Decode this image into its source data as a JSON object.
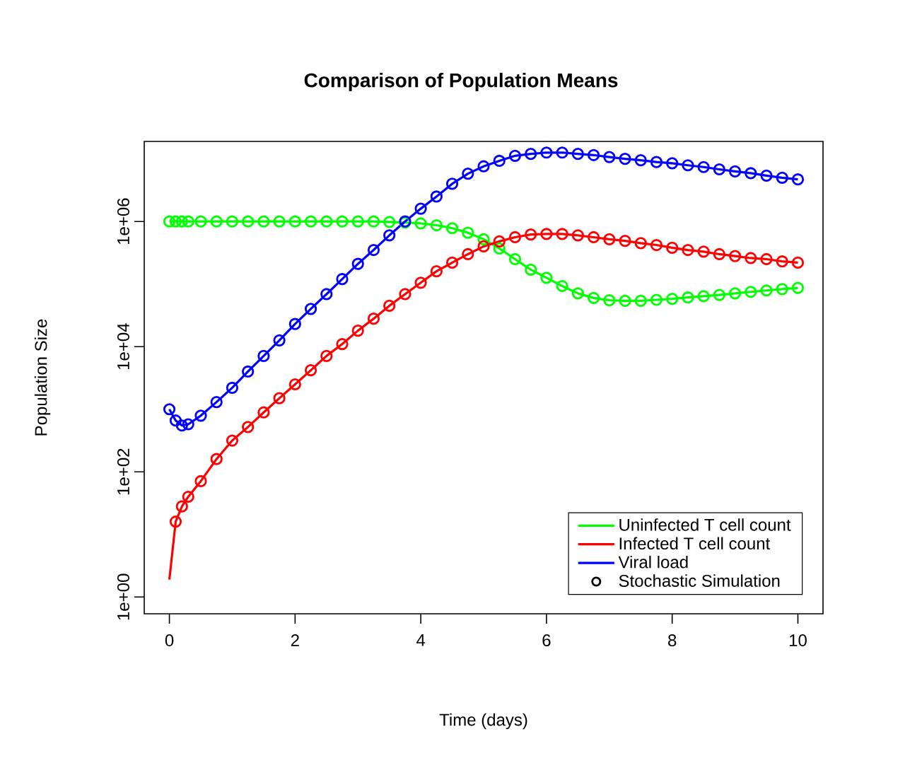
{
  "chart_data": {
    "type": "line",
    "title": "Comparison of Population Means",
    "xlabel": "Time (days)",
    "ylabel": "Population Size",
    "x": [
      0,
      0.1,
      0.2,
      0.3,
      0.5,
      0.75,
      1,
      1.25,
      1.5,
      1.75,
      2,
      2.25,
      2.5,
      2.75,
      3,
      3.25,
      3.5,
      3.75,
      4,
      4.25,
      4.5,
      4.75,
      5,
      5.25,
      5.5,
      5.75,
      6,
      6.25,
      6.5,
      6.75,
      7,
      7.25,
      7.5,
      7.75,
      8,
      8.25,
      8.5,
      8.75,
      9,
      9.25,
      9.5,
      9.75,
      10
    ],
    "series": [
      {
        "name": "Uninfected T cell count",
        "color": "#00ff00",
        "values": [
          1000000,
          1000000,
          1000000,
          1000000,
          1000000,
          1000000,
          1000000,
          1000000,
          1000000,
          1000000,
          1000000,
          1000000,
          1000000,
          1000000,
          1000000,
          1000000,
          980000,
          960000,
          930000,
          870000,
          780000,
          660000,
          520000,
          370000,
          250000,
          170000,
          126000,
          93000,
          71000,
          60000,
          55000,
          54000,
          54000,
          56000,
          58000,
          61000,
          64000,
          67000,
          71000,
          75000,
          79000,
          83000,
          87000
        ]
      },
      {
        "name": "Infected T cell count",
        "color": "#ff0000",
        "values": [
          1.9,
          16,
          28,
          40,
          71,
          160,
          316,
          520,
          890,
          1500,
          2500,
          4200,
          7100,
          11000,
          18000,
          28000,
          45000,
          69000,
          105000,
          160000,
          220000,
          300000,
          400000,
          480000,
          560000,
          620000,
          630000,
          630000,
          600000,
          560000,
          520000,
          490000,
          450000,
          420000,
          380000,
          350000,
          330000,
          300000,
          280000,
          260000,
          250000,
          230000,
          220000
        ]
      },
      {
        "name": "Viral load",
        "color": "#0000ff",
        "values": [
          1000,
          660,
          550,
          575,
          790,
          1300,
          2200,
          4000,
          7100,
          12600,
          23000,
          40000,
          69000,
          120000,
          210000,
          350000,
          600000,
          1000000,
          1600000,
          2500000,
          4000000,
          5800000,
          7600000,
          9300000,
          11200000,
          12000000,
          12600000,
          12600000,
          12000000,
          11500000,
          10700000,
          10000000,
          9500000,
          8900000,
          8500000,
          7900000,
          7400000,
          6800000,
          6300000,
          5900000,
          5400000,
          5000000,
          4700000
        ]
      },
      {
        "type": "scatter",
        "marker": "circle",
        "color": "#00ff00",
        "values": [
          1000000,
          1000000,
          1000000,
          1000000,
          1000000,
          1000000,
          1000000,
          1000000,
          1000000,
          1000000,
          1000000,
          1000000,
          1000000,
          1000000,
          1000000,
          1000000,
          980000,
          960000,
          930000,
          870000,
          780000,
          660000,
          520000,
          370000,
          250000,
          170000,
          126000,
          93000,
          71000,
          60000,
          55000,
          54000,
          54000,
          56000,
          58000,
          61000,
          64000,
          67000,
          71000,
          75000,
          79000,
          83000,
          87000
        ]
      },
      {
        "type": "scatter",
        "marker": "circle",
        "color": "#ff0000",
        "values": [
          null,
          16,
          28,
          40,
          71,
          160,
          316,
          520,
          890,
          1500,
          2500,
          4200,
          7100,
          11000,
          18000,
          28000,
          45000,
          69000,
          105000,
          160000,
          220000,
          300000,
          400000,
          480000,
          560000,
          620000,
          630000,
          630000,
          600000,
          560000,
          520000,
          490000,
          450000,
          420000,
          380000,
          350000,
          330000,
          300000,
          280000,
          260000,
          250000,
          230000,
          220000
        ]
      },
      {
        "type": "scatter",
        "marker": "circle",
        "color": "#0000ff",
        "values": [
          1000,
          660,
          550,
          575,
          790,
          1300,
          2200,
          4000,
          7100,
          12600,
          23000,
          40000,
          69000,
          120000,
          210000,
          350000,
          600000,
          1000000,
          1600000,
          2500000,
          4000000,
          5800000,
          7600000,
          9300000,
          11200000,
          12000000,
          12600000,
          12600000,
          12000000,
          11500000,
          10700000,
          10000000,
          9500000,
          8900000,
          8500000,
          7900000,
          7400000,
          6800000,
          6300000,
          5900000,
          5400000,
          5000000,
          4700000
        ]
      },
      {
        "name": "Stochastic Simulation",
        "type": "scatter",
        "marker": "circle",
        "color": "#000000",
        "values": [
          null,
          null,
          null,
          null,
          null,
          null,
          null,
          null,
          null,
          null,
          null,
          null,
          null,
          null,
          null,
          null,
          null,
          null,
          null,
          null,
          null,
          null,
          null,
          null,
          null,
          null,
          null,
          null,
          null,
          null,
          null,
          null,
          null,
          null,
          null,
          null,
          null,
          null,
          null,
          null,
          null,
          null,
          null
        ]
      }
    ],
    "xlim": [
      -0.4,
      10.4
    ],
    "ylim": [
      0.54,
      19000000
    ],
    "log": true,
    "xticks": [
      0,
      2,
      4,
      6,
      8,
      10
    ],
    "yticks": [
      {
        "value": 1,
        "label": "1e+00"
      },
      {
        "value": 100,
        "label": "1e+02"
      },
      {
        "value": 10000,
        "label": "1e+04"
      },
      {
        "value": 1000000,
        "label": "1e+06"
      }
    ],
    "legend": "bottom right",
    "grid": false
  }
}
